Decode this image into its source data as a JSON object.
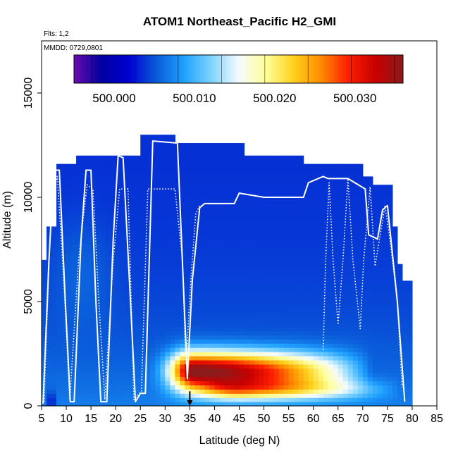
{
  "chart_data": {
    "type": "heatmap",
    "title": "ATOM1 Northeast_Pacific H2_GMI",
    "flights_label": "Flts: 1,2",
    "dates_label": "MMDD: 0729,0801",
    "xlabel": "Latitude (deg N)",
    "ylabel": "Altitude (m)",
    "xlim": [
      5,
      85
    ],
    "ylim": [
      0,
      17500
    ],
    "x_ticks": [
      "5",
      "10",
      "15",
      "20",
      "25",
      "30",
      "35",
      "40",
      "45",
      "50",
      "55",
      "60",
      "65",
      "70",
      "75",
      "80",
      "85"
    ],
    "y_ticks": [
      "0",
      "5000",
      "10000",
      "15000"
    ],
    "colorbar": {
      "range": [
        499.995,
        500.036
      ],
      "tick_values": [
        500.0,
        500.01,
        500.02,
        500.03
      ],
      "tick_labels": [
        "500.000",
        "500.010",
        "500.020",
        "500.030"
      ],
      "colors": [
        "#6a0dad",
        "#0000a0",
        "#0000d0",
        "#0a5ad8",
        "#1ea0ff",
        "#7dd2ff",
        "#f5faff",
        "#ffff99",
        "#ffd21e",
        "#ff8c00",
        "#ff1e00",
        "#c80000",
        "#8b1a1a"
      ]
    },
    "column_tops": [
      [
        5,
        6.3,
        7000
      ],
      [
        6.3,
        8,
        8600
      ],
      [
        8,
        12,
        11500
      ],
      [
        12,
        25,
        12000
      ],
      [
        25,
        32,
        13000
      ],
      [
        32,
        46,
        12500
      ],
      [
        46,
        58,
        12000
      ],
      [
        58,
        70,
        11500
      ],
      [
        70,
        72,
        11000
      ],
      [
        72,
        76,
        10500
      ],
      [
        76,
        77.5,
        8500
      ],
      [
        77.5,
        78.5,
        6800
      ],
      [
        78.5,
        80,
        6000
      ]
    ],
    "background_field": {
      "base": 500.0035,
      "near_surface_peak": 500.007,
      "surface_scale_height_m": 4000,
      "upper_blob": {
        "lat": 13,
        "alt": 6500,
        "sigma_lat": 6,
        "sigma_alt": 2500,
        "amp": 0.0015
      }
    },
    "anomalies": [
      {
        "lat": 36,
        "alt": 1700,
        "sigma_lat": 12,
        "sigma_alt": 900,
        "amp": 0.031,
        "north_tail_lat": 72
      },
      {
        "lat": 45,
        "alt": 800,
        "sigma_lat": 20,
        "sigma_alt": 500,
        "amp": 0.013,
        "north_tail_lat": 78
      },
      {
        "lat": 7,
        "alt": 200,
        "sigma_lat": 2,
        "sigma_alt": 500,
        "amp": -0.0045
      }
    ],
    "flight_track_1": [
      [
        5.3,
        100
      ],
      [
        6.5,
        7000
      ],
      [
        7.5,
        11300
      ],
      [
        8.6,
        11300
      ],
      [
        9.8,
        5000
      ],
      [
        10.8,
        200
      ],
      [
        11.6,
        200
      ],
      [
        13,
        8000
      ],
      [
        14,
        11300
      ],
      [
        15,
        11300
      ],
      [
        16,
        5000
      ],
      [
        17,
        200
      ],
      [
        18.2,
        200
      ],
      [
        19.5,
        8000
      ],
      [
        20.5,
        12000
      ],
      [
        21.5,
        11900
      ],
      [
        23,
        5000
      ],
      [
        24,
        200
      ],
      [
        25,
        600
      ],
      [
        26,
        600
      ],
      [
        27.5,
        12700
      ],
      [
        32.5,
        12600
      ],
      [
        34.5,
        1300
      ],
      [
        35.5,
        6000
      ],
      [
        37,
        9500
      ],
      [
        38,
        9700
      ],
      [
        44,
        9700
      ],
      [
        45,
        10200
      ],
      [
        50,
        10000
      ],
      [
        58,
        10000
      ],
      [
        59,
        10700
      ],
      [
        62,
        11000
      ],
      [
        63,
        10900
      ],
      [
        67,
        10900
      ],
      [
        70.5,
        10400
      ],
      [
        71.2,
        8200
      ],
      [
        73,
        8000
      ],
      [
        74,
        9400
      ],
      [
        75,
        9600
      ],
      [
        77,
        5000
      ],
      [
        78.5,
        200
      ]
    ],
    "flight_track_2": [
      [
        5.5,
        200
      ],
      [
        7,
        10000
      ],
      [
        8.2,
        11000
      ],
      [
        9.5,
        6000
      ],
      [
        10.7,
        300
      ],
      [
        12.5,
        7000
      ],
      [
        14.2,
        10600
      ],
      [
        15.4,
        10400
      ],
      [
        16.6,
        5000
      ],
      [
        17.8,
        300
      ],
      [
        19.5,
        7000
      ],
      [
        20.8,
        10400
      ],
      [
        22.5,
        10400
      ],
      [
        23.7,
        300
      ],
      [
        25.2,
        700
      ],
      [
        26.5,
        10400
      ],
      [
        30,
        10400
      ],
      [
        32,
        10400
      ],
      [
        33.5,
        7000
      ],
      [
        34.2,
        2000
      ],
      [
        35.2,
        6000
      ],
      [
        36.2,
        9200
      ],
      [
        37,
        9600
      ]
    ],
    "flight_track_dotted": [
      [
        62,
        2700
      ],
      [
        62.5,
        7000
      ],
      [
        63.2,
        10700
      ],
      [
        64,
        7000
      ],
      [
        65,
        3900
      ],
      [
        66,
        7000
      ],
      [
        67,
        10900
      ],
      [
        68,
        7000
      ],
      [
        69.5,
        3700
      ],
      [
        70.2,
        7000
      ],
      [
        71.5,
        10500
      ],
      [
        72.5,
        6700
      ],
      [
        74.5,
        9600
      ],
      [
        75.5,
        8000
      ],
      [
        77,
        5000
      ],
      [
        78,
        900
      ]
    ],
    "arrow_marker": {
      "lat": 35,
      "alt_top": 700,
      "alt_bottom": 0
    }
  }
}
